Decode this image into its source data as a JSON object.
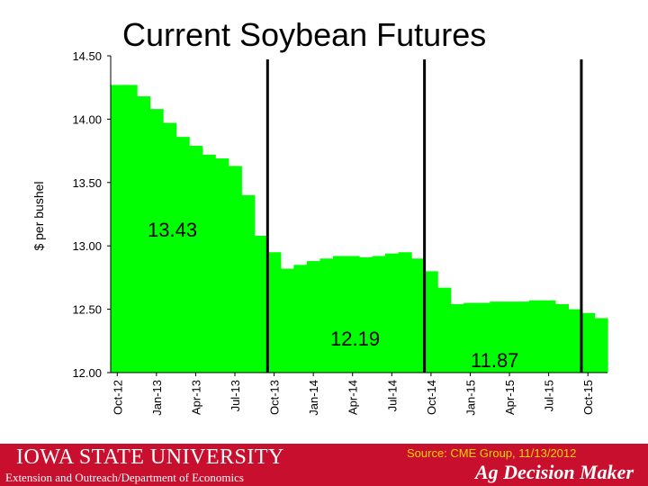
{
  "chart_data": {
    "type": "area",
    "title": "Current Soybean Futures",
    "ylabel": "$ per bushel",
    "xlabel": "",
    "ylim": [
      12.0,
      14.5
    ],
    "yticks": [
      "12.00",
      "12.50",
      "13.00",
      "13.50",
      "14.00",
      "14.50"
    ],
    "categories": [
      "Oct-12",
      "Nov-12",
      "Dec-12",
      "Jan-13",
      "Feb-13",
      "Mar-13",
      "Apr-13",
      "May-13",
      "Jun-13",
      "Jul-13",
      "Aug-13",
      "Sep-13",
      "Oct-13",
      "Nov-13",
      "Dec-13",
      "Jan-14",
      "Feb-14",
      "Mar-14",
      "Apr-14",
      "May-14",
      "Jun-14",
      "Jul-14",
      "Aug-14",
      "Sep-14",
      "Oct-14",
      "Nov-14",
      "Dec-14",
      "Jan-15",
      "Feb-15",
      "Mar-15",
      "Apr-15",
      "May-15",
      "Jun-15",
      "Jul-15",
      "Aug-15",
      "Sep-15",
      "Oct-15",
      "Nov-15"
    ],
    "tick_labels": [
      "Oct-12",
      "Jan-13",
      "Apr-13",
      "Jul-13",
      "Oct-13",
      "Jan-14",
      "Apr-14",
      "Jul-14",
      "Oct-14",
      "Jan-15",
      "Apr-15",
      "Jul-15",
      "Oct-15"
    ],
    "values": [
      14.27,
      14.27,
      14.18,
      14.08,
      13.97,
      13.86,
      13.79,
      13.72,
      13.69,
      13.63,
      13.4,
      13.08,
      12.95,
      12.82,
      12.85,
      12.88,
      12.9,
      12.92,
      12.92,
      12.91,
      12.92,
      12.94,
      12.95,
      12.9,
      12.8,
      12.67,
      12.54,
      12.55,
      12.55,
      12.56,
      12.56,
      12.56,
      12.57,
      12.57,
      12.54,
      12.5,
      12.47,
      12.43
    ],
    "period_lines_after": [
      "Sep-13",
      "Sep-14",
      "Sep-15"
    ],
    "annotations": [
      "13.43",
      "12.19",
      "11.87"
    ],
    "fill_color": "#00ff00",
    "grid": false
  },
  "footer": {
    "logo_text": "IOWA STATE UNIVERSITY",
    "department": "Extension and Outreach/Department of Economics",
    "source": "Source: CME Group, 11/13/2012",
    "brand": "Ag Decision Maker",
    "bar_color": "#c8102e"
  }
}
